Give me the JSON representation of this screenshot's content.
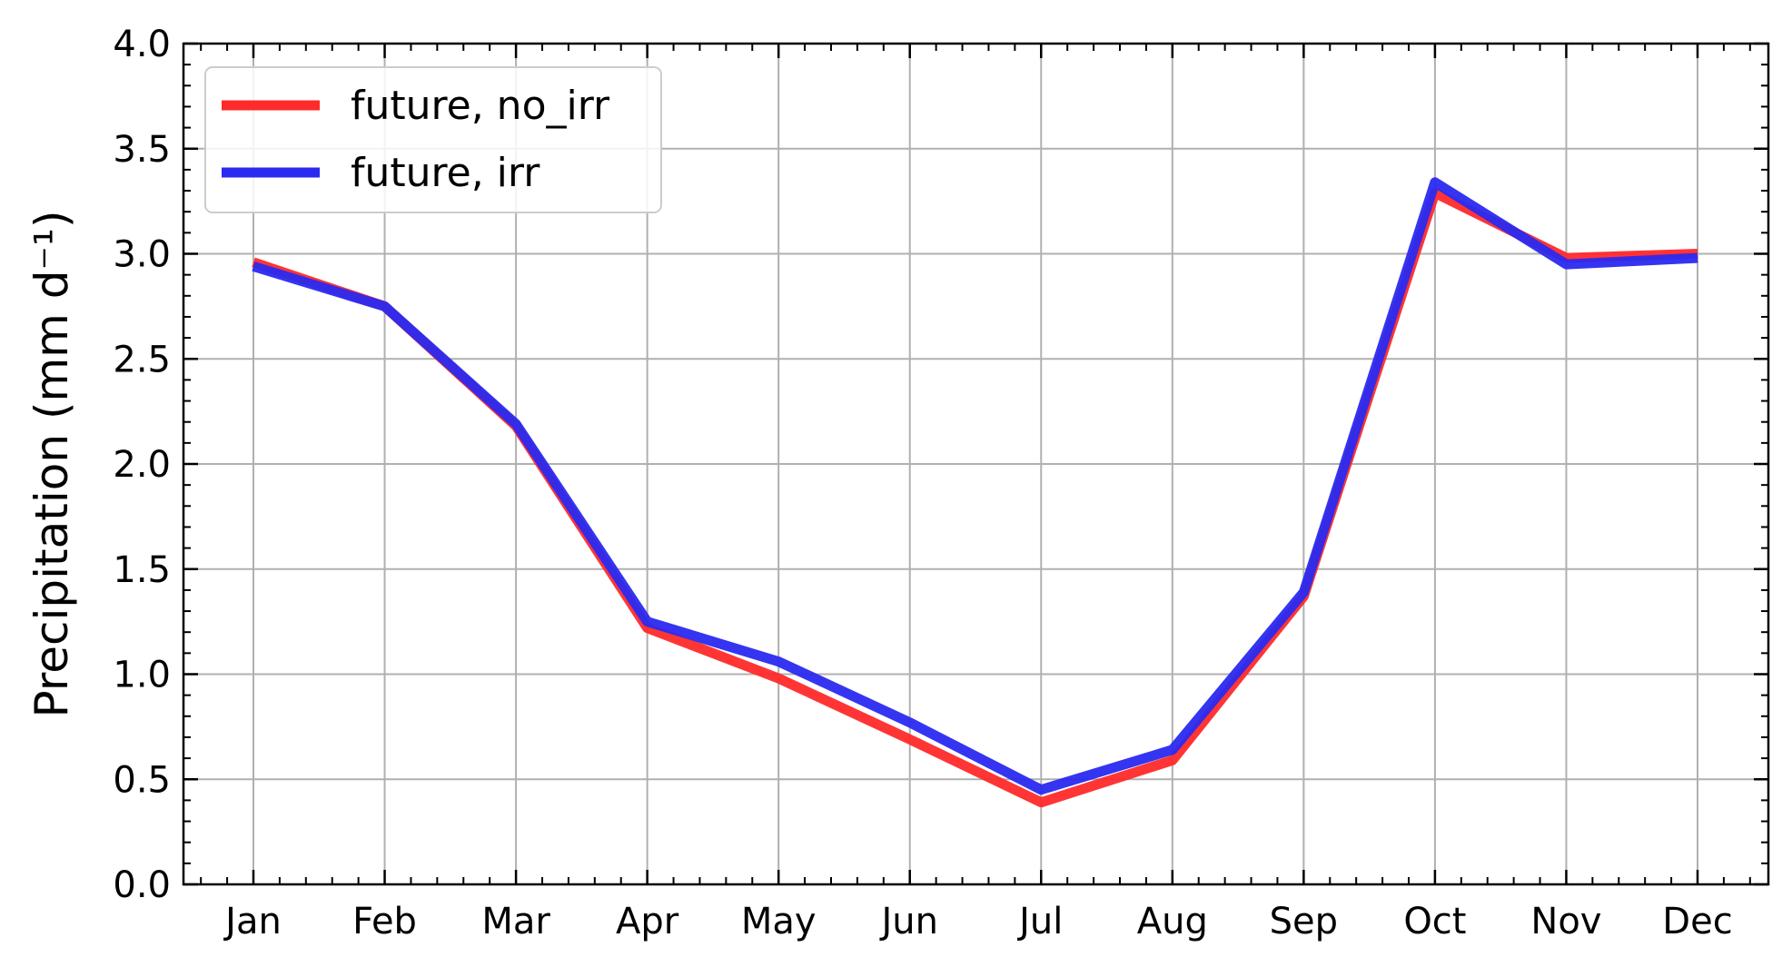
{
  "chart_data": {
    "type": "line",
    "title": "",
    "xlabel": "",
    "ylabel": "Precipitation (mm d⁻¹)",
    "categories": [
      "Jan",
      "Feb",
      "Mar",
      "Apr",
      "May",
      "Jun",
      "Jul",
      "Aug",
      "Sep",
      "Oct",
      "Nov",
      "Dec"
    ],
    "ylim": [
      0.0,
      4.0
    ],
    "yticks": [
      "0.0",
      "0.5",
      "1.0",
      "1.5",
      "2.0",
      "2.5",
      "3.0",
      "3.5",
      "4.0"
    ],
    "grid": true,
    "legend_position": "top-left",
    "series": [
      {
        "name": "future, no_irr",
        "color": "#ff2a2a",
        "values": [
          2.96,
          2.75,
          2.18,
          1.22,
          0.98,
          0.69,
          0.39,
          0.59,
          1.37,
          3.29,
          2.98,
          3.0
        ]
      },
      {
        "name": "future, irr",
        "color": "#2a2af0",
        "values": [
          2.94,
          2.75,
          2.19,
          1.25,
          1.06,
          0.77,
          0.45,
          0.64,
          1.39,
          3.34,
          2.95,
          2.98
        ]
      }
    ]
  }
}
